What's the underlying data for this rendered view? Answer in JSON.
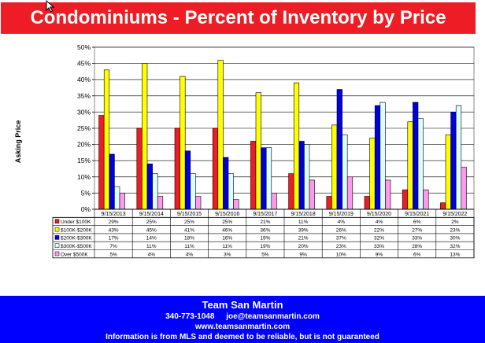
{
  "header": {
    "title": "Condominiums - Percent of Inventory by Price Range"
  },
  "chart_data": {
    "type": "bar",
    "ylabel": "Asking Price",
    "xlabel": "",
    "ylim": [
      0,
      50
    ],
    "yticks": [
      "0%",
      "5%",
      "10%",
      "15%",
      "20%",
      "25%",
      "30%",
      "35%",
      "40%",
      "45%",
      "50%"
    ],
    "grid": true,
    "legend": "table-below",
    "categories": [
      "9/15/2013",
      "9/15/2014",
      "9/15/2015",
      "9/15/2016",
      "9/15/2017",
      "9/15/2018",
      "9/15/2019",
      "9/15/2020",
      "9/15/2021",
      "9/15/2022"
    ],
    "series": [
      {
        "name": "Under $100K",
        "color": "#ee1c24",
        "values": [
          29,
          25,
          25,
          25,
          21,
          11,
          4,
          4,
          6,
          2
        ],
        "labels": [
          "29%",
          "25%",
          "25%",
          "25%",
          "21%",
          "11%",
          "4%",
          "4%",
          "6%",
          "2%"
        ]
      },
      {
        "name": "$100K-$200K",
        "color": "#ffff00",
        "values": [
          43,
          45,
          41,
          46,
          36,
          39,
          26,
          22,
          27,
          23
        ],
        "labels": [
          "43%",
          "45%",
          "41%",
          "46%",
          "36%",
          "39%",
          "26%",
          "22%",
          "27%",
          "23%"
        ]
      },
      {
        "name": "$200K-$300K",
        "color": "#0000dd",
        "values": [
          17,
          14,
          18,
          16,
          19,
          21,
          37,
          32,
          33,
          30
        ],
        "labels": [
          "17%",
          "14%",
          "18%",
          "16%",
          "19%",
          "21%",
          "37%",
          "32%",
          "33%",
          "30%"
        ]
      },
      {
        "name": "$300K-$500K",
        "color": "#ddfefe",
        "values": [
          7,
          11,
          11,
          11,
          19,
          20,
          23,
          33,
          28,
          32
        ],
        "labels": [
          "7%",
          "11%",
          "11%",
          "11%",
          "19%",
          "20%",
          "23%",
          "33%",
          "28%",
          "32%"
        ]
      },
      {
        "name": "Over $500K",
        "color": "#ff99ee",
        "values": [
          5,
          4,
          4,
          3,
          5,
          9,
          10,
          9,
          6,
          13
        ],
        "labels": [
          "5%",
          "4%",
          "4%",
          "3%",
          "5%",
          "9%",
          "10%",
          "9%",
          "6%",
          "13%"
        ]
      }
    ]
  },
  "footer": {
    "company": "Team San Martin",
    "phone": "340-773-1048",
    "email": "joe@teamsanmartin.com",
    "website": "www.teamsanmartin.com",
    "disclaimer": "Information is from MLS and deemed to be reliable, but is not guaranteed"
  },
  "colors": {
    "header_bg": "#ee1c24",
    "footer_bg": "#0000ff"
  },
  "icons": {
    "cursor": "mouse-pointer-icon"
  }
}
